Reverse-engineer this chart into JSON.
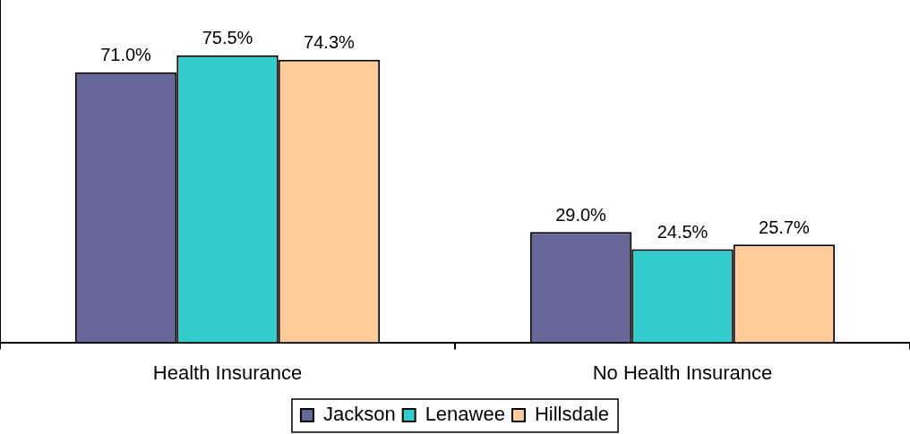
{
  "chart_data": {
    "type": "bar",
    "categories": [
      "Health Insurance",
      "No Health Insurance"
    ],
    "series": [
      {
        "name": "Jackson",
        "color": "#666699",
        "values": [
          71.0,
          29.0
        ],
        "value_labels": [
          "71.0%",
          "29.0%"
        ]
      },
      {
        "name": "Lenawee",
        "color": "#33cccc",
        "values": [
          75.5,
          24.5
        ],
        "value_labels": [
          "75.5%",
          "24.5%"
        ]
      },
      {
        "name": "Hillsdale",
        "color": "#ffcc99",
        "values": [
          74.3,
          25.7
        ],
        "value_labels": [
          "74.3%",
          "25.7%"
        ]
      }
    ],
    "ylim": [
      0,
      90
    ],
    "grid": false,
    "legend": "bottom",
    "tick_labels": "x"
  }
}
